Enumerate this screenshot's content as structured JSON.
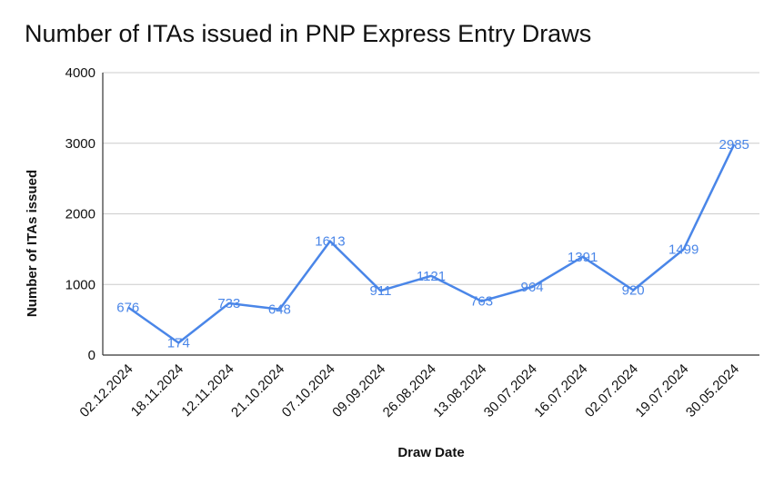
{
  "chart_data": {
    "type": "line",
    "title": "Number of ITAs issued in PNP Express Entry Draws",
    "xlabel": "Draw Date",
    "ylabel": "Number of ITAs issued",
    "ylim": [
      0,
      4000
    ],
    "yticks": [
      "0",
      "1000",
      "2000",
      "3000",
      "4000"
    ],
    "grid": true,
    "categories": [
      "02.12.2024",
      "18.11.2024",
      "12.11.2024",
      "21.10.2024",
      "07.10.2024",
      "09.09.2024",
      "26.08.2024",
      "13.08.2024",
      "30.07.2024",
      "16.07.2024",
      "02.07.2024",
      "19.07.2024",
      "30.05.2024"
    ],
    "series": [
      {
        "values": [
          676,
          174,
          733,
          648,
          1613,
          911,
          1121,
          763,
          964,
          1391,
          920,
          1499,
          2985
        ]
      }
    ],
    "line_color": "#4a86e8",
    "grid_color": "#cccccc"
  }
}
